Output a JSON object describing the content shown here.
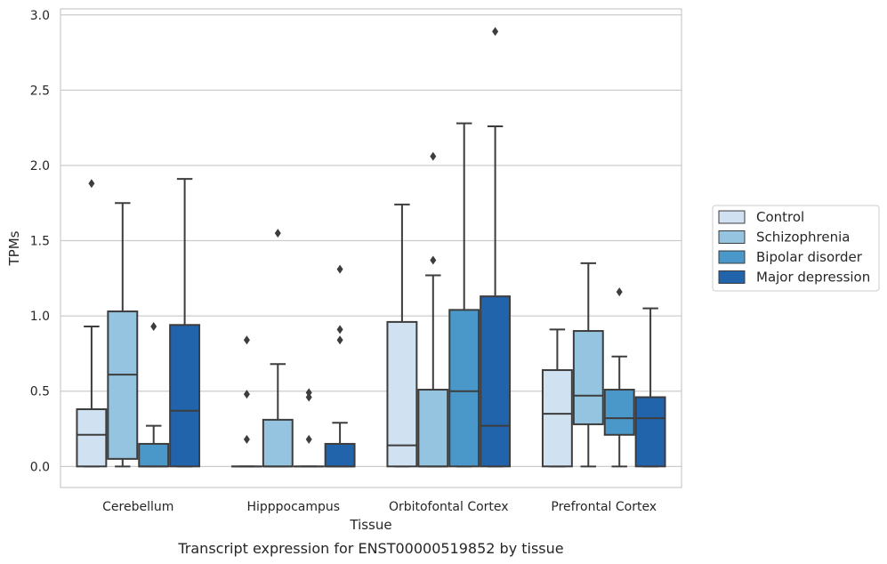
{
  "caption": "Transcript expression for ENST00000519852 by tissue",
  "chart_data": {
    "type": "boxplot",
    "xlabel": "Tissue",
    "ylabel": "TPMs",
    "ylim": [
      -0.14,
      3.04
    ],
    "yticks": [
      0.0,
      0.5,
      1.0,
      1.5,
      2.0,
      2.5,
      3.0
    ],
    "ytick_labels": [
      "0.0",
      "0.5",
      "1.0",
      "1.5",
      "2.0",
      "2.5",
      "3.0"
    ],
    "grid": "horizontal",
    "legend_position": "right",
    "categories": [
      "Cerebellum",
      "Hipppocampus",
      "Orbitofontal Cortex",
      "Prefrontal Cortex"
    ],
    "series": [
      {
        "name": "Control",
        "color": "#d0e1f2",
        "boxes": [
          {
            "whislo": 0.0,
            "q1": 0.0,
            "med": 0.21,
            "q3": 0.38,
            "whishi": 0.93,
            "fliers": [
              1.88
            ]
          },
          {
            "whislo": 0.0,
            "q1": 0.0,
            "med": 0.0,
            "q3": 0.0,
            "whishi": 0.0,
            "fliers": [
              0.18,
              0.48,
              0.84
            ]
          },
          {
            "whislo": 0.0,
            "q1": 0.0,
            "med": 0.14,
            "q3": 0.96,
            "whishi": 1.74,
            "fliers": []
          },
          {
            "whislo": 0.0,
            "q1": 0.0,
            "med": 0.35,
            "q3": 0.64,
            "whishi": 0.91,
            "fliers": []
          }
        ]
      },
      {
        "name": "Schizophrenia",
        "color": "#94c4df",
        "boxes": [
          {
            "whislo": 0.0,
            "q1": 0.05,
            "med": 0.61,
            "q3": 1.03,
            "whishi": 1.75,
            "fliers": []
          },
          {
            "whislo": 0.0,
            "q1": 0.0,
            "med": 0.0,
            "q3": 0.31,
            "whishi": 0.68,
            "fliers": [
              1.55
            ]
          },
          {
            "whislo": 0.0,
            "q1": 0.0,
            "med": 0.0,
            "q3": 0.51,
            "whishi": 1.27,
            "fliers": [
              1.37,
              2.06
            ]
          },
          {
            "whislo": 0.0,
            "q1": 0.28,
            "med": 0.47,
            "q3": 0.9,
            "whishi": 1.35,
            "fliers": []
          }
        ]
      },
      {
        "name": "Bipolar disorder",
        "color": "#4a98c9",
        "boxes": [
          {
            "whislo": 0.0,
            "q1": 0.0,
            "med": 0.0,
            "q3": 0.15,
            "whishi": 0.27,
            "fliers": [
              0.93
            ]
          },
          {
            "whislo": 0.0,
            "q1": 0.0,
            "med": 0.0,
            "q3": 0.0,
            "whishi": 0.0,
            "fliers": [
              0.18,
              0.46,
              0.49
            ]
          },
          {
            "whislo": 0.0,
            "q1": 0.0,
            "med": 0.5,
            "q3": 1.04,
            "whishi": 2.28,
            "fliers": []
          },
          {
            "whislo": 0.0,
            "q1": 0.21,
            "med": 0.32,
            "q3": 0.51,
            "whishi": 0.73,
            "fliers": [
              1.16
            ]
          }
        ]
      },
      {
        "name": "Major depression",
        "color": "#2164ab",
        "boxes": [
          {
            "whislo": 0.0,
            "q1": 0.0,
            "med": 0.37,
            "q3": 0.94,
            "whishi": 1.91,
            "fliers": []
          },
          {
            "whislo": 0.0,
            "q1": 0.0,
            "med": 0.0,
            "q3": 0.15,
            "whishi": 0.29,
            "fliers": [
              0.84,
              0.91,
              1.31
            ]
          },
          {
            "whislo": 0.0,
            "q1": 0.0,
            "med": 0.27,
            "q3": 1.13,
            "whishi": 2.26,
            "fliers": [
              2.89
            ]
          },
          {
            "whislo": 0.0,
            "q1": 0.0,
            "med": 0.32,
            "q3": 0.46,
            "whishi": 1.05,
            "fliers": []
          }
        ]
      }
    ]
  }
}
